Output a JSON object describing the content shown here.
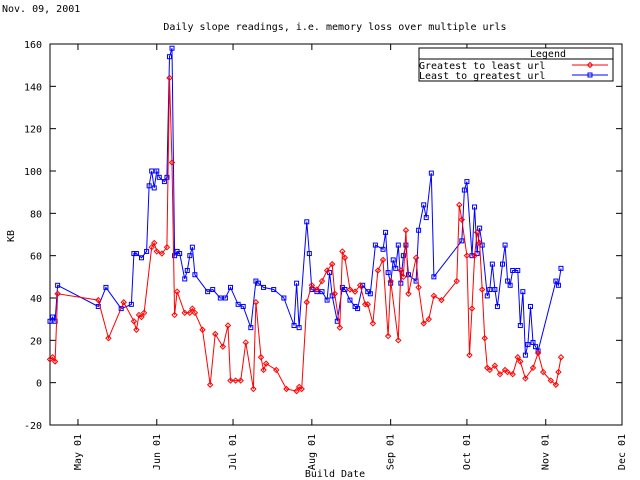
{
  "date_label": "Nov. 09, 2001",
  "chart_data": {
    "type": "line",
    "title": "Daily slope readings, i.e. memory loss over multiple urls",
    "xlabel": "Build Date",
    "ylabel": "KB",
    "ylim": [
      -20,
      160
    ],
    "yticks": [
      -20,
      0,
      20,
      40,
      60,
      80,
      100,
      120,
      140,
      160
    ],
    "xlim": [
      "2001-04-20",
      "2001-12-01"
    ],
    "xticks": [
      {
        "date": "2001-05-01",
        "label": "May 01"
      },
      {
        "date": "2001-06-01",
        "label": "Jun 01"
      },
      {
        "date": "2001-07-01",
        "label": "Jul 01"
      },
      {
        "date": "2001-08-01",
        "label": "Aug 01"
      },
      {
        "date": "2001-09-01",
        "label": "Sep 01"
      },
      {
        "date": "2001-10-01",
        "label": "Oct 01"
      },
      {
        "date": "2001-11-01",
        "label": "Nov 01"
      },
      {
        "date": "2001-12-01",
        "label": "Dec 01"
      }
    ],
    "grid": false,
    "legend": {
      "title": "Legend",
      "placement": "top-right"
    },
    "series": [
      {
        "name": "Greatest to least url",
        "color": "#ff0000",
        "marker": "diamond",
        "points": [
          [
            "2001-04-20",
            11
          ],
          [
            "2001-04-21",
            12
          ],
          [
            "2001-04-22",
            10
          ],
          [
            "2001-04-23",
            42
          ],
          [
            "2001-05-09",
            39
          ],
          [
            "2001-05-13",
            21
          ],
          [
            "2001-05-19",
            38
          ],
          [
            "2001-05-23",
            29
          ],
          [
            "2001-05-24",
            25
          ],
          [
            "2001-05-25",
            32
          ],
          [
            "2001-05-26",
            31
          ],
          [
            "2001-05-27",
            33
          ],
          [
            "2001-05-30",
            64
          ],
          [
            "2001-05-31",
            66
          ],
          [
            "2001-06-01",
            62
          ],
          [
            "2001-06-03",
            61
          ],
          [
            "2001-06-05",
            64
          ],
          [
            "2001-06-06",
            144
          ],
          [
            "2001-06-07",
            104
          ],
          [
            "2001-06-08",
            32
          ],
          [
            "2001-06-09",
            43
          ],
          [
            "2001-06-12",
            33
          ],
          [
            "2001-06-14",
            33
          ],
          [
            "2001-06-15",
            35
          ],
          [
            "2001-06-16",
            33
          ],
          [
            "2001-06-19",
            25
          ],
          [
            "2001-06-22",
            -1
          ],
          [
            "2001-06-24",
            23
          ],
          [
            "2001-06-27",
            17
          ],
          [
            "2001-06-29",
            27
          ],
          [
            "2001-06-30",
            1
          ],
          [
            "2001-07-02",
            1
          ],
          [
            "2001-07-04",
            1
          ],
          [
            "2001-07-06",
            19
          ],
          [
            "2001-07-09",
            -3
          ],
          [
            "2001-07-10",
            38
          ],
          [
            "2001-07-12",
            12
          ],
          [
            "2001-07-13",
            6
          ],
          [
            "2001-07-14",
            9
          ],
          [
            "2001-07-18",
            6
          ],
          [
            "2001-07-22",
            -3
          ],
          [
            "2001-07-26",
            -4
          ],
          [
            "2001-07-27",
            -2
          ],
          [
            "2001-07-28",
            -3
          ],
          [
            "2001-07-30",
            38
          ],
          [
            "2001-08-01",
            46
          ],
          [
            "2001-08-03",
            44
          ],
          [
            "2001-08-05",
            48
          ],
          [
            "2001-08-07",
            53
          ],
          [
            "2001-08-09",
            56
          ],
          [
            "2001-08-10",
            42
          ],
          [
            "2001-08-12",
            26
          ],
          [
            "2001-08-13",
            62
          ],
          [
            "2001-08-14",
            59
          ],
          [
            "2001-08-16",
            44
          ],
          [
            "2001-08-18",
            43
          ],
          [
            "2001-08-20",
            46
          ],
          [
            "2001-08-22",
            37
          ],
          [
            "2001-08-23",
            37
          ],
          [
            "2001-08-25",
            28
          ],
          [
            "2001-08-27",
            53
          ],
          [
            "2001-08-29",
            58
          ],
          [
            "2001-08-31",
            22
          ],
          [
            "2001-09-01",
            48
          ],
          [
            "2001-09-04",
            20
          ],
          [
            "2001-09-05",
            53
          ],
          [
            "2001-09-06",
            50
          ],
          [
            "2001-09-07",
            72
          ],
          [
            "2001-09-08",
            42
          ],
          [
            "2001-09-11",
            59
          ],
          [
            "2001-09-12",
            45
          ],
          [
            "2001-09-14",
            28
          ],
          [
            "2001-09-16",
            30
          ],
          [
            "2001-09-18",
            41
          ],
          [
            "2001-09-21",
            39
          ],
          [
            "2001-09-27",
            48
          ],
          [
            "2001-09-28",
            84
          ],
          [
            "2001-09-29",
            77
          ],
          [
            "2001-10-01",
            60
          ],
          [
            "2001-10-02",
            13
          ],
          [
            "2001-10-03",
            35
          ],
          [
            "2001-10-04",
            60
          ],
          [
            "2001-10-05",
            71
          ],
          [
            "2001-10-06",
            66
          ],
          [
            "2001-10-07",
            44
          ],
          [
            "2001-10-08",
            21
          ],
          [
            "2001-10-09",
            7
          ],
          [
            "2001-10-10",
            6
          ],
          [
            "2001-10-12",
            8
          ],
          [
            "2001-10-14",
            4
          ],
          [
            "2001-10-16",
            6
          ],
          [
            "2001-10-17",
            5
          ],
          [
            "2001-10-19",
            4
          ],
          [
            "2001-10-21",
            12
          ],
          [
            "2001-10-22",
            10
          ],
          [
            "2001-10-24",
            2
          ],
          [
            "2001-10-27",
            7
          ],
          [
            "2001-10-29",
            14
          ],
          [
            "2001-10-31",
            5
          ],
          [
            "2001-11-03",
            1
          ],
          [
            "2001-11-05",
            -1
          ],
          [
            "2001-11-06",
            5
          ],
          [
            "2001-11-07",
            12
          ]
        ]
      },
      {
        "name": "Least to greatest url",
        "color": "#0000ff",
        "marker": "square",
        "points": [
          [
            "2001-04-20",
            29
          ],
          [
            "2001-04-21",
            31
          ],
          [
            "2001-04-22",
            29
          ],
          [
            "2001-04-23",
            46
          ],
          [
            "2001-05-09",
            36
          ],
          [
            "2001-05-12",
            45
          ],
          [
            "2001-05-18",
            35
          ],
          [
            "2001-05-22",
            37
          ],
          [
            "2001-05-23",
            61
          ],
          [
            "2001-05-24",
            61
          ],
          [
            "2001-05-26",
            59
          ],
          [
            "2001-05-28",
            62
          ],
          [
            "2001-05-29",
            93
          ],
          [
            "2001-05-30",
            100
          ],
          [
            "2001-05-31",
            92
          ],
          [
            "2001-06-01",
            100
          ],
          [
            "2001-06-02",
            97
          ],
          [
            "2001-06-04",
            95
          ],
          [
            "2001-06-05",
            97
          ],
          [
            "2001-06-06",
            154
          ],
          [
            "2001-06-07",
            158
          ],
          [
            "2001-06-08",
            60
          ],
          [
            "2001-06-09",
            62
          ],
          [
            "2001-06-10",
            61
          ],
          [
            "2001-06-12",
            49
          ],
          [
            "2001-06-13",
            53
          ],
          [
            "2001-06-14",
            60
          ],
          [
            "2001-06-15",
            64
          ],
          [
            "2001-06-16",
            51
          ],
          [
            "2001-06-21",
            43
          ],
          [
            "2001-06-23",
            44
          ],
          [
            "2001-06-26",
            40
          ],
          [
            "2001-06-28",
            40
          ],
          [
            "2001-06-30",
            45
          ],
          [
            "2001-07-03",
            37
          ],
          [
            "2001-07-05",
            36
          ],
          [
            "2001-07-08",
            26
          ],
          [
            "2001-07-10",
            48
          ],
          [
            "2001-07-11",
            47
          ],
          [
            "2001-07-13",
            45
          ],
          [
            "2001-07-17",
            44
          ],
          [
            "2001-07-21",
            40
          ],
          [
            "2001-07-25",
            27
          ],
          [
            "2001-07-26",
            47
          ],
          [
            "2001-07-27",
            26
          ],
          [
            "2001-07-30",
            76
          ],
          [
            "2001-07-31",
            61
          ],
          [
            "2001-08-01",
            44
          ],
          [
            "2001-08-03",
            43
          ],
          [
            "2001-08-05",
            43
          ],
          [
            "2001-08-07",
            39
          ],
          [
            "2001-08-08",
            52
          ],
          [
            "2001-08-09",
            41
          ],
          [
            "2001-08-11",
            29
          ],
          [
            "2001-08-13",
            45
          ],
          [
            "2001-08-14",
            44
          ],
          [
            "2001-08-16",
            39
          ],
          [
            "2001-08-18",
            36
          ],
          [
            "2001-08-19",
            35
          ],
          [
            "2001-08-21",
            46
          ],
          [
            "2001-08-23",
            43
          ],
          [
            "2001-08-24",
            42
          ],
          [
            "2001-08-26",
            65
          ],
          [
            "2001-08-29",
            63
          ],
          [
            "2001-08-30",
            71
          ],
          [
            "2001-08-31",
            52
          ],
          [
            "2001-09-01",
            47
          ],
          [
            "2001-09-02",
            58
          ],
          [
            "2001-09-03",
            54
          ],
          [
            "2001-09-04",
            65
          ],
          [
            "2001-09-05",
            47
          ],
          [
            "2001-09-06",
            60
          ],
          [
            "2001-09-07",
            65
          ],
          [
            "2001-09-08",
            51
          ],
          [
            "2001-09-11",
            48
          ],
          [
            "2001-09-12",
            72
          ],
          [
            "2001-09-14",
            84
          ],
          [
            "2001-09-15",
            78
          ],
          [
            "2001-09-17",
            99
          ],
          [
            "2001-09-18",
            50
          ],
          [
            "2001-09-29",
            67
          ],
          [
            "2001-09-30",
            91
          ],
          [
            "2001-10-01",
            95
          ],
          [
            "2001-10-03",
            60
          ],
          [
            "2001-10-04",
            83
          ],
          [
            "2001-10-05",
            61
          ],
          [
            "2001-10-06",
            73
          ],
          [
            "2001-10-07",
            65
          ],
          [
            "2001-10-09",
            41
          ],
          [
            "2001-10-10",
            44
          ],
          [
            "2001-10-11",
            56
          ],
          [
            "2001-10-12",
            44
          ],
          [
            "2001-10-13",
            36
          ],
          [
            "2001-10-15",
            56
          ],
          [
            "2001-10-16",
            65
          ],
          [
            "2001-10-17",
            48
          ],
          [
            "2001-10-18",
            46
          ],
          [
            "2001-10-19",
            53
          ],
          [
            "2001-10-21",
            53
          ],
          [
            "2001-10-22",
            27
          ],
          [
            "2001-10-23",
            43
          ],
          [
            "2001-10-24",
            13
          ],
          [
            "2001-10-25",
            18
          ],
          [
            "2001-10-26",
            36
          ],
          [
            "2001-10-27",
            19
          ],
          [
            "2001-10-28",
            17
          ],
          [
            "2001-10-29",
            15
          ],
          [
            "2001-11-05",
            48
          ],
          [
            "2001-11-06",
            46
          ],
          [
            "2001-11-07",
            54
          ]
        ]
      }
    ]
  }
}
